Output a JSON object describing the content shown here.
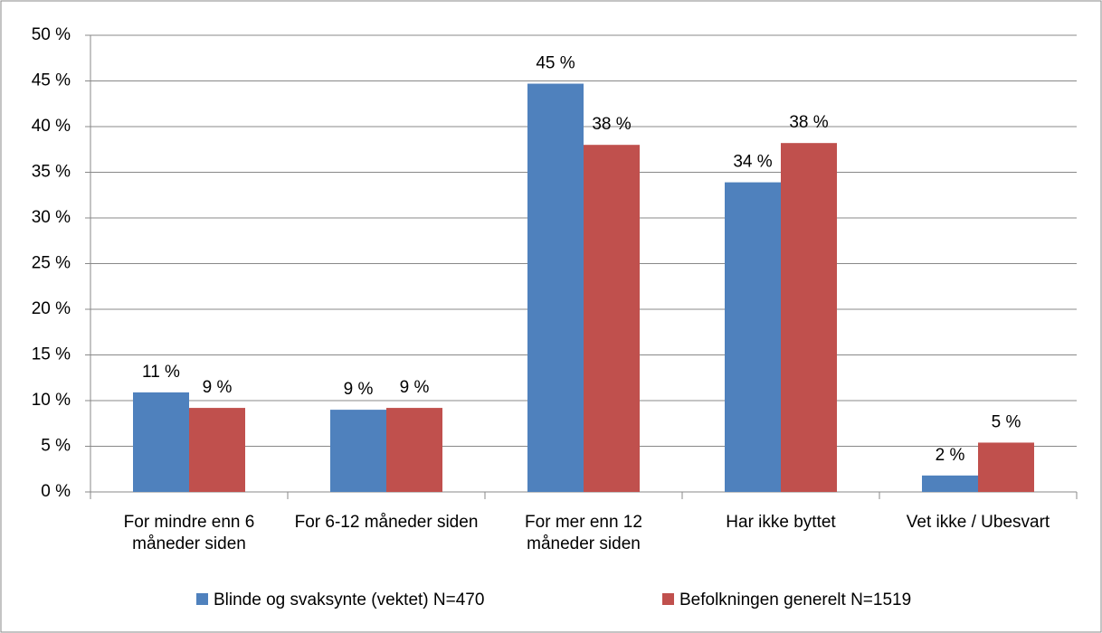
{
  "chart_data": {
    "type": "bar",
    "categories": [
      "For mindre enn 6 måneder siden",
      "For 6-12 måneder siden",
      "For mer enn 12 måneder siden",
      "Har ikke byttet",
      "Vet ikke / Ubesvart"
    ],
    "series": [
      {
        "name": "Blinde og svaksynte (vektet) N=470",
        "color": "#4f81bd",
        "values": [
          10.9,
          9.0,
          44.7,
          33.9,
          1.8
        ],
        "value_labels": [
          "11 %",
          "9 %",
          "45 %",
          "34 %",
          "2 %"
        ]
      },
      {
        "name": "Befolkningen generelt N=1519",
        "color": "#c0504d",
        "values": [
          9.2,
          9.2,
          38.0,
          38.2,
          5.4
        ],
        "value_labels": [
          "9 %",
          "9 %",
          "38 %",
          "38 %",
          "5 %"
        ]
      }
    ],
    "ylim": [
      0,
      50
    ],
    "yticks": [
      {
        "value": 0,
        "label": "0 %"
      },
      {
        "value": 5,
        "label": "5 %"
      },
      {
        "value": 10,
        "label": "10 %"
      },
      {
        "value": 15,
        "label": "15 %"
      },
      {
        "value": 20,
        "label": "20 %"
      },
      {
        "value": 25,
        "label": "25 %"
      },
      {
        "value": 30,
        "label": "30 %"
      },
      {
        "value": 35,
        "label": "35 %"
      },
      {
        "value": 40,
        "label": "40 %"
      },
      {
        "value": 45,
        "label": "45 %"
      },
      {
        "value": 50,
        "label": "50 %"
      }
    ],
    "grid": true,
    "legend": "bottom"
  }
}
